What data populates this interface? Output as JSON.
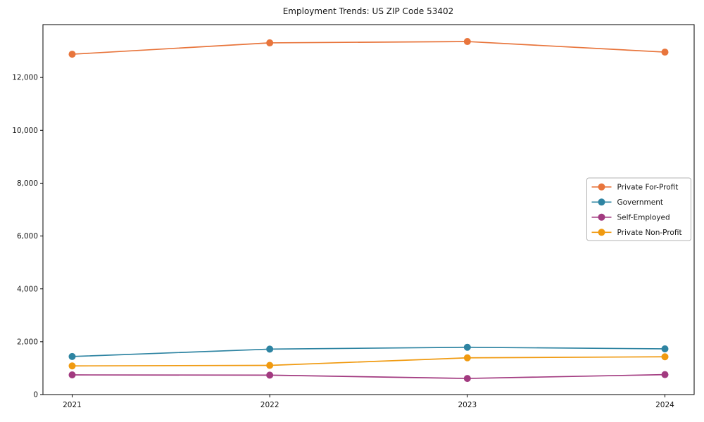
{
  "chart_data": {
    "type": "line",
    "title": "Employment Trends: US ZIP Code 53402",
    "xlabel": "",
    "ylabel": "",
    "categories": [
      "2021",
      "2022",
      "2023",
      "2024"
    ],
    "series": [
      {
        "name": "Private For-Profit",
        "color": "#e8753c",
        "values": [
          12880,
          13310,
          13360,
          12960
        ]
      },
      {
        "name": "Government",
        "color": "#2e84a2",
        "values": [
          1440,
          1720,
          1790,
          1730
        ]
      },
      {
        "name": "Self-Employed",
        "color": "#a23a80",
        "values": [
          745,
          735,
          610,
          755
        ]
      },
      {
        "name": "Private Non-Profit",
        "color": "#f09a10",
        "values": [
          1085,
          1105,
          1390,
          1430
        ]
      }
    ],
    "ylim": [
      0,
      14000
    ],
    "yticks": [
      0,
      2000,
      4000,
      6000,
      8000,
      10000,
      12000
    ],
    "ytick_labels": [
      "0",
      "2,000",
      "4,000",
      "6,000",
      "8,000",
      "10,000",
      "12,000"
    ],
    "grid": false,
    "legend_position": "center right",
    "marker": "circle",
    "axis_color": "#000000",
    "legend_border_color": "#b3b3b3"
  }
}
